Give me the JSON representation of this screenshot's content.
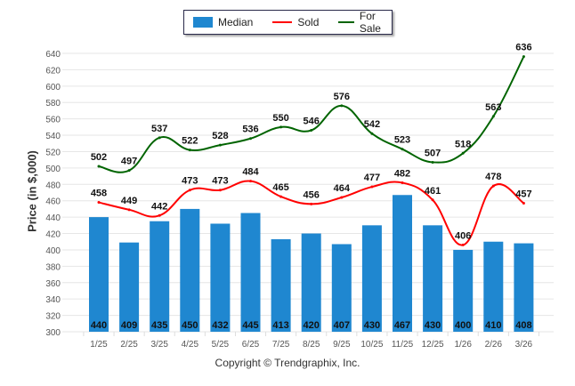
{
  "chart_data": {
    "type": "bar+line",
    "title": "",
    "xlabel": "",
    "ylabel": "Price (in $,000)",
    "ylim": [
      300,
      640
    ],
    "yticks": [
      300,
      320,
      340,
      360,
      380,
      400,
      420,
      440,
      460,
      480,
      500,
      520,
      540,
      560,
      580,
      600,
      620,
      640
    ],
    "grid": true,
    "legend_position": "top-center",
    "categories": [
      "1/25",
      "2/25",
      "3/25",
      "4/25",
      "5/25",
      "6/25",
      "7/25",
      "8/25",
      "9/25",
      "10/25",
      "11/25",
      "12/25",
      "1/26",
      "2/26",
      "3/26"
    ],
    "series": [
      {
        "name": "Median",
        "type": "bar",
        "color": "#1f87d0",
        "values": [
          440,
          409,
          435,
          450,
          432,
          445,
          413,
          420,
          407,
          430,
          467,
          430,
          400,
          410,
          408
        ]
      },
      {
        "name": "Sold",
        "type": "line",
        "color": "#ff0000",
        "values": [
          458,
          449,
          442,
          473,
          473,
          484,
          465,
          456,
          464,
          477,
          482,
          461,
          406,
          478,
          457
        ]
      },
      {
        "name": "For Sale",
        "type": "line",
        "color": "#006400",
        "values": [
          502,
          497,
          537,
          522,
          528,
          536,
          550,
          546,
          576,
          542,
          523,
          507,
          518,
          563,
          636
        ]
      }
    ]
  },
  "legend": {
    "median": "Median",
    "sold": "Sold",
    "for_sale": "For Sale"
  },
  "footer": {
    "copyright": "Copyright © Trendgraphix, Inc."
  }
}
